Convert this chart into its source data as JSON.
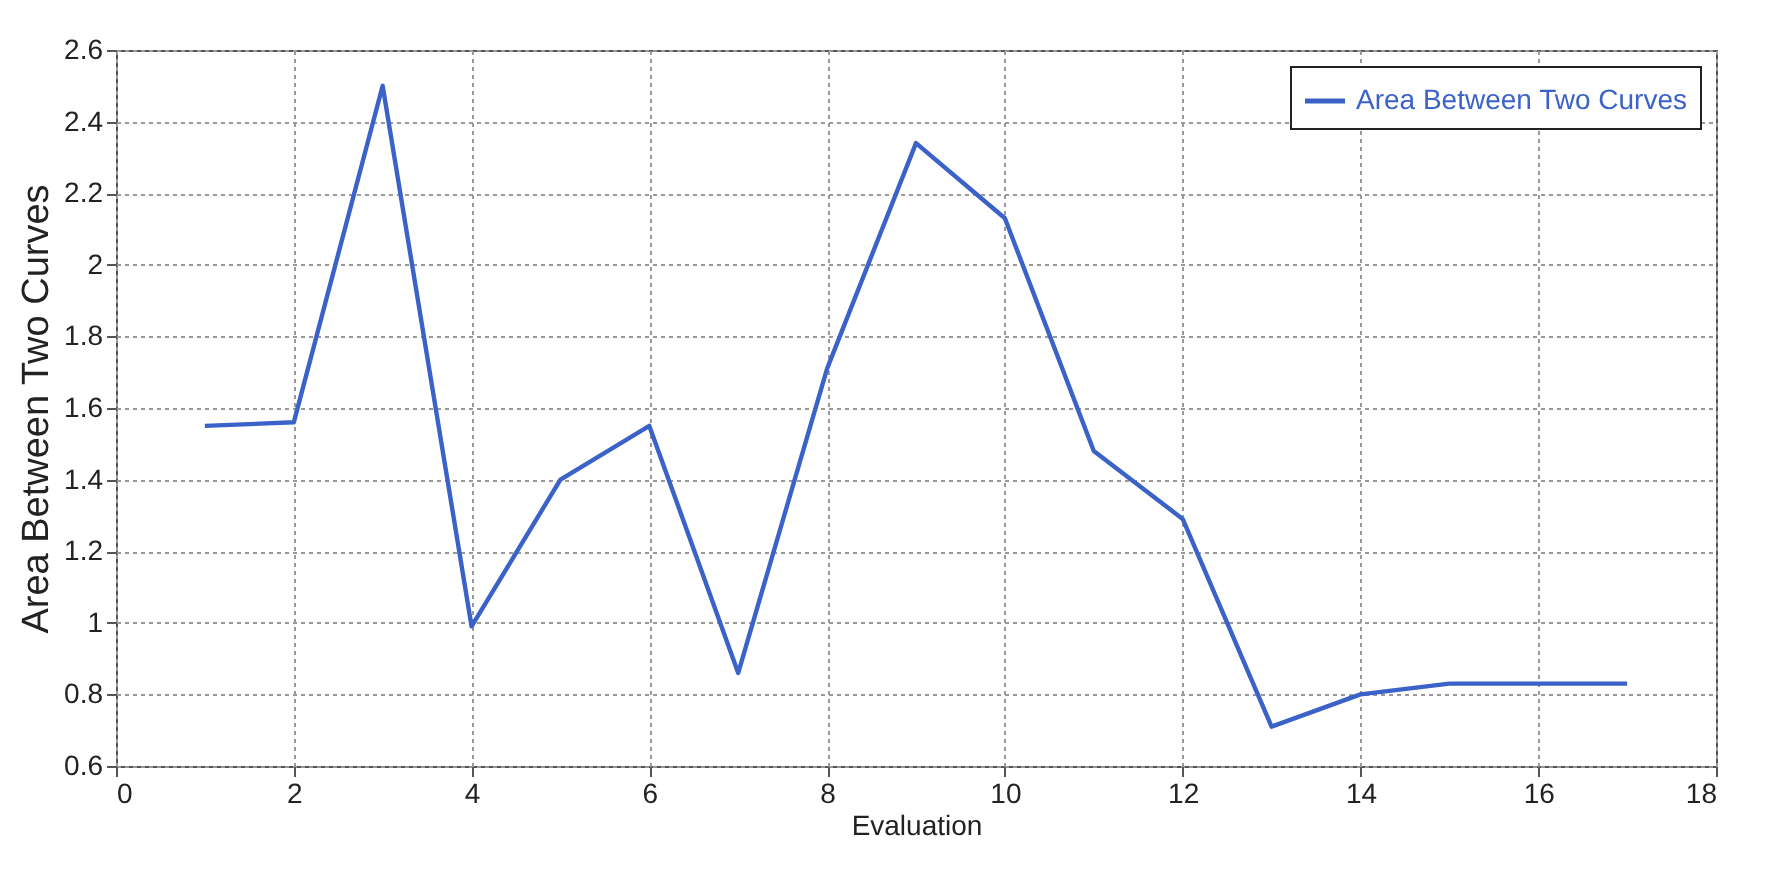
{
  "chart_data": {
    "type": "line",
    "xlabel": "Evaluation",
    "ylabel": "Area Between Two Curves",
    "x": [
      1,
      2,
      3,
      4,
      5,
      6,
      7,
      8,
      9,
      10,
      11,
      12,
      13,
      14,
      15,
      16,
      17
    ],
    "series": [
      {
        "name": "Area Between Two Curves",
        "color": "#3a62c8",
        "values": [
          1.55,
          1.56,
          2.5,
          0.99,
          1.4,
          1.55,
          0.86,
          1.71,
          2.34,
          2.13,
          1.48,
          1.29,
          0.71,
          0.8,
          0.83,
          0.83,
          0.83
        ]
      }
    ],
    "xlim": [
      0,
      18
    ],
    "xticks": [
      0,
      2,
      4,
      6,
      8,
      10,
      12,
      14,
      16,
      18
    ],
    "ylim": [
      0.6,
      2.6
    ],
    "yticks": [
      0.6,
      0.8,
      1,
      1.2,
      1.4,
      1.6,
      1.8,
      2,
      2.2,
      2.4,
      2.6
    ],
    "grid": true,
    "legend": "top right",
    "marker": "none",
    "line_style": "solid"
  }
}
